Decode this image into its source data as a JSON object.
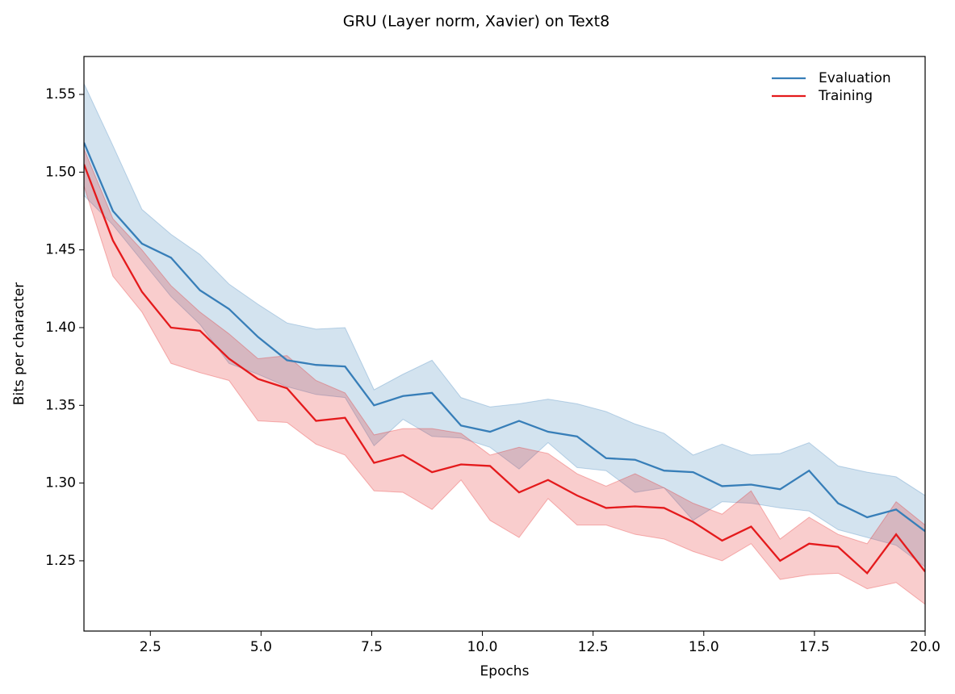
{
  "chart_data": {
    "type": "line",
    "title": "GRU (Layer norm, Xavier) on Text8",
    "xlabel": "Epochs",
    "ylabel": "Bits per character",
    "x": [
      1,
      1.655,
      2.31,
      2.966,
      3.621,
      4.276,
      4.931,
      5.586,
      6.241,
      6.897,
      7.552,
      8.207,
      8.862,
      9.517,
      10.172,
      10.828,
      11.483,
      12.138,
      12.793,
      13.448,
      14.103,
      14.759,
      15.414,
      16.069,
      16.724,
      17.379,
      18.034,
      18.69,
      19.345,
      20
    ],
    "series": [
      {
        "name": "Evaluation",
        "color": "#377eb8",
        "values": [
          1.519,
          1.475,
          1.454,
          1.445,
          1.424,
          1.412,
          1.394,
          1.379,
          1.376,
          1.375,
          1.35,
          1.356,
          1.358,
          1.337,
          1.333,
          1.34,
          1.333,
          1.33,
          1.316,
          1.315,
          1.308,
          1.307,
          1.298,
          1.299,
          1.296,
          1.308,
          1.287,
          1.278,
          1.283,
          1.269
        ],
        "upper": [
          1.557,
          1.517,
          1.476,
          1.46,
          1.447,
          1.428,
          1.415,
          1.403,
          1.399,
          1.4,
          1.36,
          1.37,
          1.379,
          1.355,
          1.349,
          1.351,
          1.354,
          1.351,
          1.346,
          1.338,
          1.332,
          1.318,
          1.325,
          1.318,
          1.319,
          1.326,
          1.311,
          1.307,
          1.304,
          1.292
        ],
        "lower": [
          1.485,
          1.466,
          1.443,
          1.42,
          1.402,
          1.377,
          1.37,
          1.362,
          1.357,
          1.355,
          1.324,
          1.341,
          1.33,
          1.329,
          1.323,
          1.309,
          1.326,
          1.31,
          1.308,
          1.294,
          1.297,
          1.276,
          1.288,
          1.287,
          1.284,
          1.282,
          1.27,
          1.265,
          1.26,
          1.246
        ]
      },
      {
        "name": "Training",
        "color": "#e41a1c",
        "values": [
          1.505,
          1.456,
          1.423,
          1.4,
          1.398,
          1.38,
          1.367,
          1.361,
          1.34,
          1.342,
          1.313,
          1.318,
          1.307,
          1.312,
          1.311,
          1.294,
          1.302,
          1.292,
          1.284,
          1.285,
          1.284,
          1.275,
          1.263,
          1.272,
          1.25,
          1.261,
          1.259,
          1.242,
          1.267,
          1.243
        ],
        "upper": [
          1.515,
          1.47,
          1.45,
          1.427,
          1.41,
          1.396,
          1.38,
          1.382,
          1.366,
          1.358,
          1.331,
          1.335,
          1.335,
          1.332,
          1.318,
          1.323,
          1.319,
          1.306,
          1.298,
          1.306,
          1.297,
          1.287,
          1.28,
          1.295,
          1.264,
          1.278,
          1.267,
          1.261,
          1.288,
          1.273
        ],
        "lower": [
          1.491,
          1.433,
          1.41,
          1.377,
          1.371,
          1.366,
          1.34,
          1.339,
          1.325,
          1.318,
          1.295,
          1.294,
          1.283,
          1.302,
          1.276,
          1.265,
          1.29,
          1.273,
          1.273,
          1.267,
          1.264,
          1.256,
          1.25,
          1.261,
          1.238,
          1.241,
          1.242,
          1.232,
          1.236,
          1.222
        ]
      }
    ],
    "xlim": [
      1,
      20
    ],
    "xticks": [
      2.5,
      {
        "value": 5,
        "label": "5.0"
      },
      7.5,
      {
        "value": 10,
        "label": "10.0"
      },
      12.5,
      {
        "value": 15,
        "label": "15.0"
      },
      17.5,
      {
        "value": 20,
        "label": "20.0"
      }
    ],
    "ylim": [
      1.2048,
      1.5744
    ],
    "yticks": [
      1.25,
      {
        "value": 1.3,
        "label": "1.30"
      },
      1.35,
      {
        "value": 1.4,
        "label": "1.40"
      },
      1.45,
      {
        "value": 1.5,
        "label": "1.50"
      },
      1.55
    ],
    "legend": "upper right",
    "grid": false
  }
}
